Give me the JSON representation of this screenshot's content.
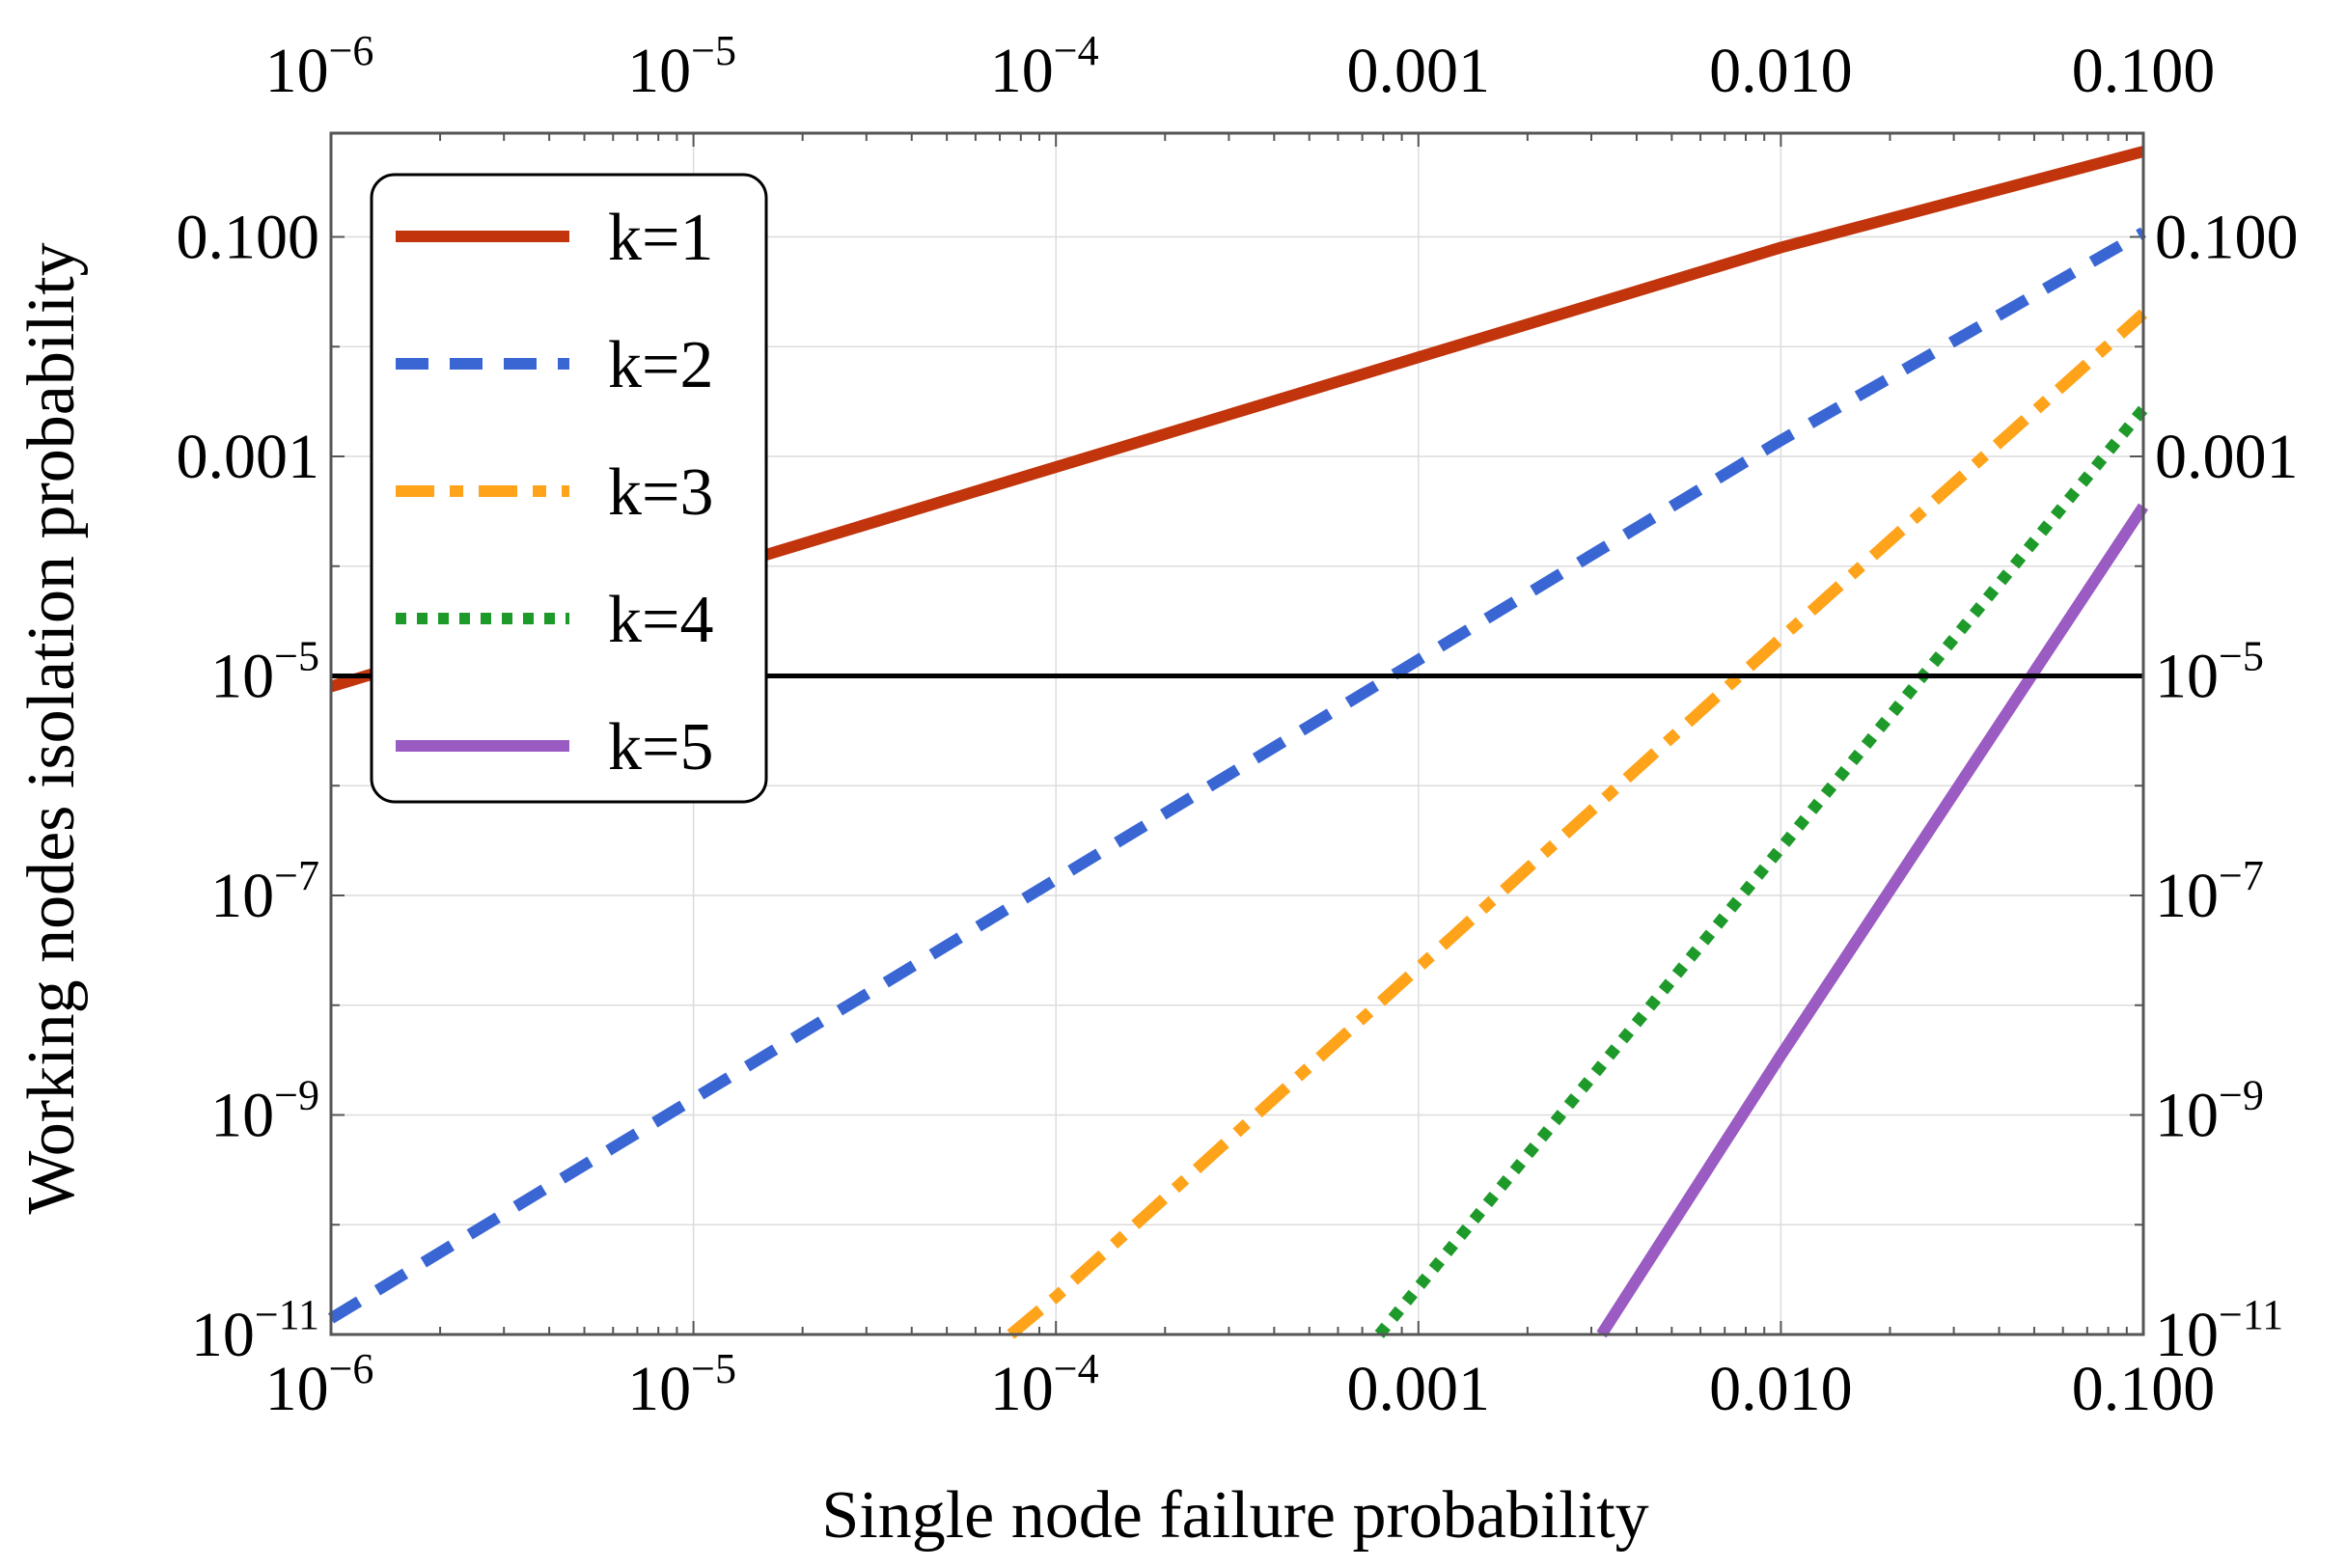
{
  "chart_data": {
    "type": "line",
    "title": "",
    "xlabel": "Single node failure probability",
    "ylabel": "Working nodes isolation probability",
    "x_scale": "log",
    "y_scale": "log",
    "xlim": [
      1e-06,
      0.1
    ],
    "ylim": [
      1e-11,
      0.8
    ],
    "grid": true,
    "legend_position": "top-left",
    "x_ticks": [
      {
        "value": 1e-06,
        "base": "10",
        "exp": "−6",
        "text": ""
      },
      {
        "value": 1e-05,
        "base": "10",
        "exp": "−5",
        "text": ""
      },
      {
        "value": 0.0001,
        "base": "10",
        "exp": "−4",
        "text": ""
      },
      {
        "value": 0.001,
        "base": "",
        "exp": "",
        "text": "0.001"
      },
      {
        "value": 0.01,
        "base": "",
        "exp": "",
        "text": "0.010"
      },
      {
        "value": 0.1,
        "base": "",
        "exp": "",
        "text": "0.100"
      }
    ],
    "y_ticks": [
      {
        "value": 1e-11,
        "base": "10",
        "exp": "−11",
        "text": ""
      },
      {
        "value": 1e-09,
        "base": "10",
        "exp": "−9",
        "text": ""
      },
      {
        "value": 1e-07,
        "base": "10",
        "exp": "−7",
        "text": ""
      },
      {
        "value": 1e-05,
        "base": "10",
        "exp": "−5",
        "text": ""
      },
      {
        "value": 0.001,
        "base": "",
        "exp": "",
        "text": "0.001"
      },
      {
        "value": 0.1,
        "base": "",
        "exp": "",
        "text": "0.100"
      }
    ],
    "reference_line": {
      "y": 1e-05,
      "color": "#000000"
    },
    "series": [
      {
        "name": "k=1",
        "color": "#c1340c",
        "dash": "solid",
        "x": [
          1e-06,
          1e-05,
          0.0001,
          0.001,
          0.01,
          0.1
        ],
        "y": [
          8e-06,
          8e-05,
          0.0008,
          0.008,
          0.08,
          0.6
        ]
      },
      {
        "name": "k=2",
        "color": "#3a66d4",
        "dash": "dashed",
        "x": [
          1e-06,
          1e-05,
          0.0001,
          0.001,
          0.01,
          0.1
        ],
        "y": [
          1.4e-11,
          1.4e-09,
          1.4e-07,
          1.4e-05,
          0.0014,
          0.11
        ]
      },
      {
        "name": "k=3",
        "color": "#ffa31a",
        "dash": "dashdot",
        "x": [
          7.5e-05,
          0.0001,
          0.001,
          0.01,
          0.1
        ],
        "y": [
          1e-11,
          2.2e-11,
          2.2e-08,
          2.2e-05,
          0.02
        ]
      },
      {
        "name": "k=4",
        "color": "#1e9a2a",
        "dash": "dotted",
        "x": [
          0.00078,
          0.001,
          0.01,
          0.1
        ],
        "y": [
          1e-11,
          2.7e-11,
          2.7e-07,
          0.0027
        ]
      },
      {
        "name": "k=5",
        "color": "#9a5bc3",
        "dash": "solid",
        "x": [
          0.0032,
          0.01,
          0.1
        ],
        "y": [
          1e-11,
          3.5e-09,
          0.00035
        ]
      }
    ]
  }
}
